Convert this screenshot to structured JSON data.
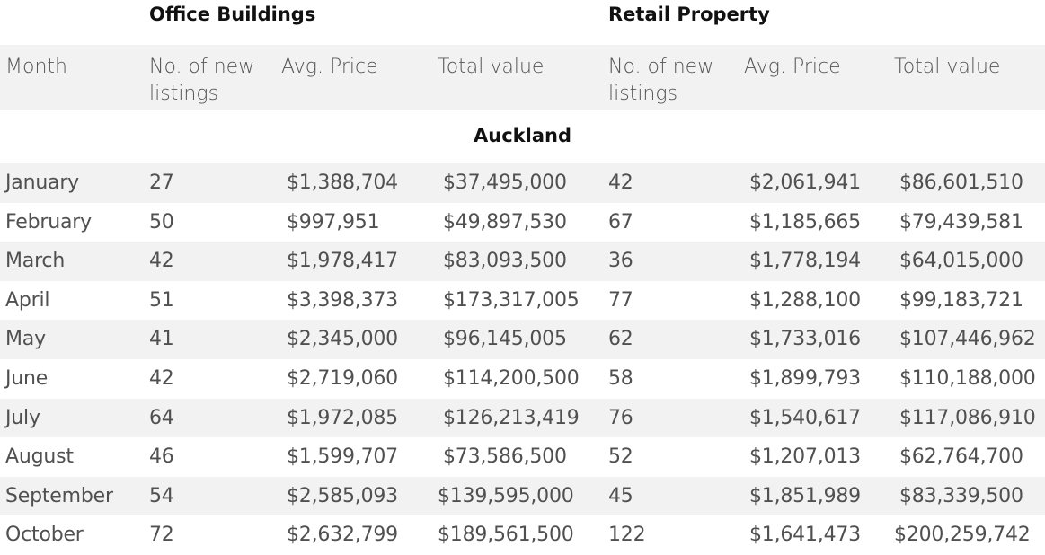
{
  "groups": {
    "office": "Office Buildings",
    "retail": "Retail Property"
  },
  "columns": {
    "month": "Month",
    "office_listings_1": "No. of new",
    "office_listings_2": "listings",
    "office_avg_price": "Avg. Price",
    "office_total_value": "Total value",
    "retail_listings_1": "No. of new",
    "retail_listings_2": "listings",
    "retail_avg_price": "Avg. Price",
    "retail_total_value": "Total value"
  },
  "region": "Auckland",
  "rows": [
    {
      "month": "January",
      "office_listings": "27",
      "office_avg": "$1,388,704",
      "office_total": "$37,495,000",
      "retail_listings": "42",
      "retail_avg": "$2,061,941",
      "retail_total": "$86,601,510"
    },
    {
      "month": "February",
      "office_listings": "50",
      "office_avg": "$997,951",
      "office_total": "$49,897,530",
      "retail_listings": "67",
      "retail_avg": "$1,185,665",
      "retail_total": "$79,439,581"
    },
    {
      "month": "March",
      "office_listings": "42",
      "office_avg": "$1,978,417",
      "office_total": "$83,093,500",
      "retail_listings": "36",
      "retail_avg": "$1,778,194",
      "retail_total": "$64,015,000"
    },
    {
      "month": "April",
      "office_listings": "51",
      "office_avg": "$3,398,373",
      "office_total": "$173,317,005",
      "retail_listings": "77",
      "retail_avg": "$1,288,100",
      "retail_total": "$99,183,721"
    },
    {
      "month": "May",
      "office_listings": "41",
      "office_avg": "$2,345,000",
      "office_total": "$96,145,005",
      "retail_listings": "62",
      "retail_avg": "$1,733,016",
      "retail_total": "$107,446,962"
    },
    {
      "month": "June",
      "office_listings": "42",
      "office_avg": "$2,719,060",
      "office_total": "$114,200,500",
      "retail_listings": "58",
      "retail_avg": "$1,899,793",
      "retail_total": "$110,188,000"
    },
    {
      "month": "July",
      "office_listings": "64",
      "office_avg": "$1,972,085",
      "office_total": "$126,213,419",
      "retail_listings": "76",
      "retail_avg": "$1,540,617",
      "retail_total": "$117,086,910"
    },
    {
      "month": "August",
      "office_listings": "46",
      "office_avg": "$1,599,707",
      "office_total": "$73,586,500",
      "retail_listings": "52",
      "retail_avg": "$1,207,013",
      "retail_total": "$62,764,700"
    },
    {
      "month": "September",
      "office_listings": "54",
      "office_avg": "$2,585,093",
      "office_total": "$139,595,000",
      "retail_listings": "45",
      "retail_avg": "$1,851,989",
      "retail_total": "$83,339,500"
    },
    {
      "month": "October",
      "office_listings": "72",
      "office_avg": "$2,632,799",
      "office_total": "$189,561,500",
      "retail_listings": "122",
      "retail_avg": "$1,641,473",
      "retail_total": "$200,259,742"
    }
  ]
}
